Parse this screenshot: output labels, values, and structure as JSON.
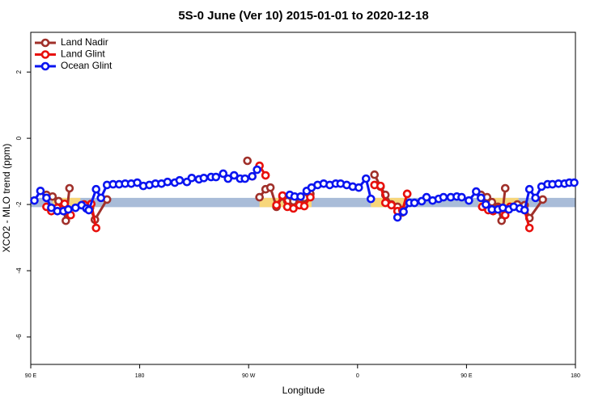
{
  "chart_data": {
    "type": "line",
    "title": "5S-0 June (Ver 10)   2015-01-01 to 2020-12-18",
    "x_label": "Longitude",
    "y_label": "XCO2 - MLO trend (ppm)",
    "xlim": [
      90,
      540
    ],
    "ylim": [
      -6.83,
      3.2
    ],
    "xticks": [
      {
        "value": 90,
        "label": "90 E"
      },
      180,
      {
        "value": 270,
        "label": "90 W"
      },
      {
        "value": 360,
        "label": "0"
      },
      {
        "value": 450,
        "label": "90 E"
      },
      {
        "value": 540,
        "label": "180"
      }
    ],
    "yticks": [
      -6,
      -4,
      -2,
      0,
      2
    ],
    "legend": "top-left",
    "reference_band": {
      "range": [
        -2.08,
        -1.8
      ],
      "color": "#a9bcd8"
    },
    "shaded_x_ranges": {
      "color": "#f7d67a",
      "ranges": [
        [
          108,
          131
        ],
        [
          279,
          322
        ],
        [
          371,
          399
        ],
        [
          460,
          493
        ]
      ],
      "ymax": -1.8
    },
    "series": [
      {
        "name": "Land Nadir",
        "color": "#a0302a",
        "x": [
          103,
          108,
          113,
          117,
          119,
          122,
          null,
          134,
          139,
          143,
          153,
          null,
          269,
          null,
          279,
          284,
          288,
          293,
          298,
          302,
          307,
          312,
          316,
          321,
          null,
          374,
          379,
          383,
          388,
          393,
          397,
          401,
          null,
          462,
          467,
          471,
          476,
          479,
          482,
          null,
          492,
          498,
          502,
          513
        ],
        "values": [
          -1.71,
          -1.76,
          -1.9,
          -2.1,
          -2.49,
          -1.51,
          null,
          -2.02,
          -2.1,
          -2.46,
          -1.85,
          null,
          -0.68,
          null,
          -1.78,
          -1.54,
          -1.49,
          -2.07,
          -1.76,
          -1.9,
          -1.9,
          -1.95,
          -1.8,
          -1.68,
          null,
          -1.1,
          -1.46,
          -1.71,
          -2.0,
          -2.07,
          -2.24,
          -1.68,
          null,
          -1.71,
          -1.78,
          -1.93,
          -2.07,
          -2.49,
          -1.51,
          null,
          -2.0,
          -2.02,
          -2.41,
          -1.85
        ]
      },
      {
        "name": "Land Glint",
        "color": "#e8100c",
        "x": [
          103,
          107,
          112,
          118,
          123,
          null,
          134,
          140,
          144,
          null,
          273,
          279,
          284,
          null,
          293,
          298,
          302,
          307,
          312,
          316,
          321,
          null,
          374,
          379,
          383,
          388,
          393,
          397,
          401,
          null,
          463,
          468,
          472,
          477,
          482,
          486,
          null,
          498,
          502
        ],
        "values": [
          -2.07,
          -2.2,
          -2.1,
          -1.98,
          -2.32,
          null,
          -2.0,
          -1.98,
          -2.71,
          null,
          -1.15,
          -0.83,
          -1.12,
          null,
          -2.02,
          -1.73,
          -2.07,
          -2.12,
          -2.02,
          -2.05,
          -1.78,
          null,
          -1.41,
          -1.44,
          -1.95,
          -2.02,
          -2.2,
          -2.17,
          -1.68,
          null,
          -2.07,
          -2.17,
          -2.2,
          -2.12,
          -2.32,
          -2.07,
          null,
          -2.17,
          -2.71
        ]
      },
      {
        "name": "Ocean Glint",
        "color": "#0a14f0",
        "x": [
          93,
          98,
          103,
          107,
          112,
          117,
          121,
          127,
          132,
          136,
          138,
          144,
          148,
          153,
          158,
          163,
          168,
          173,
          178,
          183,
          188,
          193,
          198,
          203,
          209,
          213,
          219,
          223,
          229,
          233,
          239,
          243,
          249,
          253,
          258,
          263,
          267,
          273,
          277,
          null,
          304,
          308,
          313,
          318,
          322,
          327,
          332,
          337,
          342,
          346,
          351,
          356,
          361,
          367,
          371,
          null,
          393,
          398,
          403,
          407,
          413,
          417,
          422,
          427,
          431,
          437,
          442,
          446,
          452,
          458,
          462,
          466,
          471,
          476,
          480,
          485,
          489,
          494,
          498,
          502,
          507,
          512,
          517,
          521,
          526,
          531,
          535,
          539
        ],
        "values": [
          -1.88,
          -1.59,
          -1.8,
          -2.1,
          -2.2,
          -2.2,
          -2.15,
          -2.1,
          -2.02,
          -2.12,
          -2.17,
          -1.54,
          -1.8,
          -1.41,
          -1.39,
          -1.39,
          -1.37,
          -1.37,
          -1.34,
          -1.44,
          -1.41,
          -1.37,
          -1.37,
          -1.32,
          -1.34,
          -1.27,
          -1.32,
          -1.2,
          -1.24,
          -1.2,
          -1.17,
          -1.17,
          -1.07,
          -1.22,
          -1.12,
          -1.22,
          -1.22,
          -1.15,
          -0.95,
          null,
          -1.71,
          -1.76,
          -1.76,
          -1.59,
          -1.49,
          -1.41,
          -1.37,
          -1.41,
          -1.37,
          -1.37,
          -1.41,
          -1.46,
          -1.49,
          -1.22,
          -1.83,
          null,
          -2.39,
          -2.22,
          -1.95,
          -1.95,
          -1.9,
          -1.78,
          -1.88,
          -1.83,
          -1.78,
          -1.78,
          -1.76,
          -1.78,
          -1.88,
          -1.61,
          -1.8,
          -2.0,
          -2.15,
          -2.15,
          -2.1,
          -2.15,
          -2.07,
          -2.12,
          -2.17,
          -1.54,
          -1.8,
          -1.46,
          -1.39,
          -1.39,
          -1.37,
          -1.37,
          -1.34,
          -1.34
        ]
      }
    ]
  }
}
